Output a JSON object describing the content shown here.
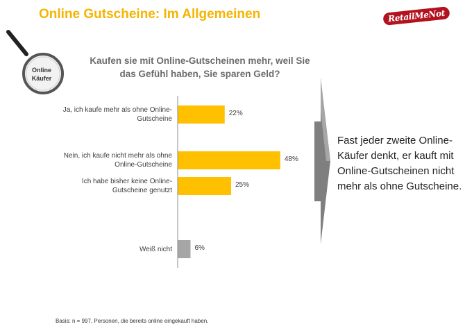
{
  "title": "Online Gutscheine: Im Allgemeinen",
  "logo_text": "RetailMeNot",
  "badge": {
    "line1": "Online",
    "line2": "Käufer",
    "icon": "magnifier-icon"
  },
  "question": {
    "line1": "Kaufen sie mit Online-Gutscheinen mehr, weil Sie",
    "line2": "das Gefühl haben, Sie sparen Geld?"
  },
  "insight": "Fast jeder zweite Online-Käufer denkt, er kauft mit Online-Gutscheinen nicht mehr als ohne Gutscheine.",
  "footnote": "Basis: n = 997, Personen, die bereits online eingekauft haben.",
  "colors": {
    "title": "#f5b400",
    "bar": "#ffc000",
    "bar_neutral": "#a6a6a6",
    "arrow": "#7f7f7f"
  },
  "chart_data": {
    "type": "bar",
    "orientation": "horizontal",
    "categories": [
      [
        "Ja, ich kaufe mehr als ohne Online-",
        "Gutscheine"
      ],
      [
        "Nein, ich kaufe nicht mehr als ohne",
        "Online-Gutscheine"
      ],
      [
        "Ich habe bisher keine Online-",
        "Gutscheine genutzt"
      ],
      [
        "Weiß nicht"
      ]
    ],
    "values": [
      22,
      48,
      25,
      6
    ],
    "value_labels": [
      "22%",
      "48%",
      "25%",
      "6%"
    ],
    "bar_colors": [
      "#ffc000",
      "#ffc000",
      "#ffc000",
      "#a6a6a6"
    ],
    "unit": "%",
    "xlim": [
      0,
      100
    ]
  }
}
